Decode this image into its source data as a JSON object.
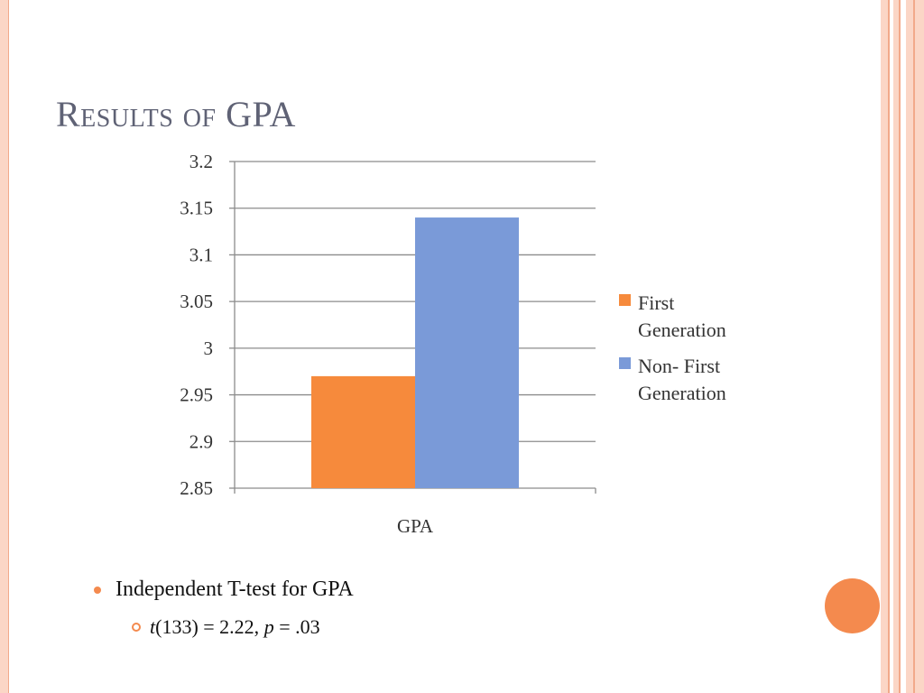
{
  "slide": {
    "title": "Results of GPA",
    "bullet": "Independent T-test for GPA",
    "sub_bullet": {
      "t": "t",
      "df_part": "(133) = 2.22, ",
      "p": "p",
      "p_part": " = .03"
    }
  },
  "colors": {
    "accent": "#f48a4e",
    "frame_light": "#fbd6c6",
    "frame_mid": "#f2a98a",
    "title": "#5f6275"
  },
  "chart_data": {
    "type": "bar",
    "title": "",
    "xlabel": "",
    "ylabel": "",
    "categories": [
      "GPA"
    ],
    "series": [
      {
        "name": "First Generation",
        "legend_lines": [
          "First",
          "Generation"
        ],
        "values": [
          2.97
        ],
        "color": "#f68a3c"
      },
      {
        "name": "Non- First Generation",
        "legend_lines": [
          "Non- First",
          "Generation"
        ],
        "values": [
          3.14
        ],
        "color": "#7a9ad8"
      }
    ],
    "ylim": [
      2.85,
      3.2
    ],
    "yticks": [
      2.85,
      2.9,
      2.95,
      3,
      3.05,
      3.1,
      3.15,
      3.2
    ],
    "ytick_labels": [
      "2.85",
      "2.9",
      "2.95",
      "3",
      "3.05",
      "3.1",
      "3.15",
      "3.2"
    ],
    "grid": true,
    "legend_position": "right"
  }
}
